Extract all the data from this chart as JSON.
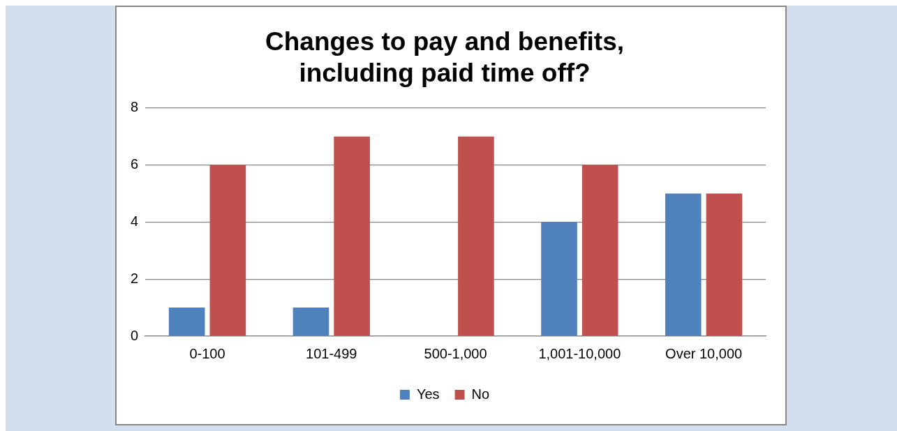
{
  "chart_data": {
    "type": "bar",
    "title": "Changes to pay and benefits, including paid time off?",
    "categories": [
      "0-100",
      "101-499",
      "500-1,000",
      "1,001-10,000",
      "Over 10,000"
    ],
    "series": [
      {
        "name": "Yes",
        "color": "#4f81bd",
        "values": [
          1,
          1,
          0,
          4,
          5
        ]
      },
      {
        "name": "No",
        "color": "#c0504d",
        "values": [
          6,
          7,
          7,
          6,
          5
        ]
      }
    ],
    "ylim": [
      0,
      8
    ],
    "yticks": [
      0,
      2,
      4,
      6,
      8
    ],
    "grid": "y",
    "legend": "bottom"
  }
}
